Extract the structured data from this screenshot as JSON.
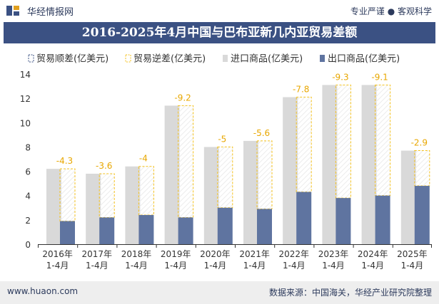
{
  "header": {
    "brand": "华经情报网",
    "tagline": "专业严谨 ● 客观科学",
    "title": "2016-2025年4月中国与巴布亚新几内亚贸易差额"
  },
  "footer": {
    "website": "www.huaon.com",
    "source": "数据来源：中国海关，华经产业研究院整理"
  },
  "colors": {
    "import": "#d9d9d9",
    "export": "#5f74a0",
    "deficit_border": "#f4c21e",
    "deficit_label": "#e8a700",
    "header_bg": "#3b5183",
    "axis_text": "#333333"
  },
  "chart_data": {
    "type": "bar",
    "title": "2016-2025年4月中国与巴布亚新几内亚贸易差额",
    "categories": [
      "2016年\n1-4月",
      "2017年\n1-4月",
      "2018年\n1-4月",
      "2019年\n1-4月",
      "2020年\n1-4月",
      "2021年\n1-4月",
      "2022年\n1-4月",
      "2023年\n1-4月",
      "2024年\n1-4月",
      "2025年\n1-4月"
    ],
    "series": [
      {
        "name": "贸易顺差(亿美元)",
        "values": [
          null,
          null,
          null,
          null,
          null,
          null,
          null,
          null,
          null,
          null
        ]
      },
      {
        "name": "贸易逆差(亿美元)",
        "values": [
          -4.3,
          -3.6,
          -4,
          -9.2,
          -5,
          -5.6,
          -7.8,
          -9.3,
          -9.1,
          -2.9
        ]
      },
      {
        "name": "进口商品(亿美元)",
        "values": [
          6.2,
          5.8,
          6.4,
          11.4,
          8.0,
          8.5,
          12.1,
          13.1,
          13.1,
          7.7
        ]
      },
      {
        "name": "出口商品(亿美元)",
        "values": [
          1.9,
          2.2,
          2.4,
          2.2,
          3.0,
          2.9,
          4.3,
          3.8,
          4.0,
          4.8
        ]
      }
    ],
    "deficit_labels": [
      "-4.3",
      "-3.6",
      "-4",
      "-9.2",
      "-5",
      "-5.6",
      "-7.8",
      "-9.3",
      "-9.1",
      "-2.9"
    ],
    "ylim": [
      0,
      14
    ],
    "yticks": [
      0,
      2,
      4,
      6,
      8,
      10,
      12,
      14
    ],
    "ytick_labels": [
      "0",
      "2",
      "4",
      "6",
      "8",
      "10",
      "12",
      "14"
    ],
    "legend_position": "top",
    "grid": false
  }
}
